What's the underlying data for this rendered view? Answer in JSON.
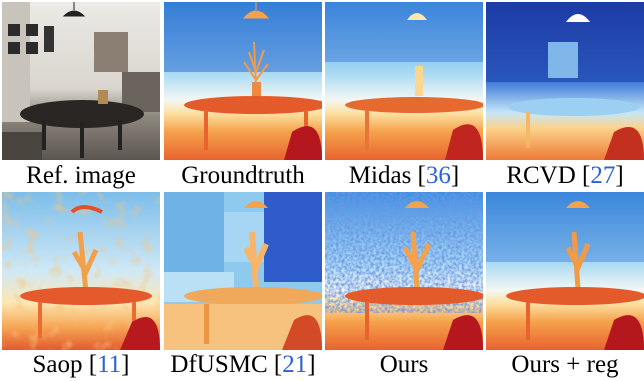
{
  "figure": {
    "panels": [
      {
        "id": "ref",
        "label": "Ref. image",
        "cite": "",
        "style": "photo"
      },
      {
        "id": "gt",
        "label": "Groundtruth",
        "cite": "",
        "style": "depth-smooth"
      },
      {
        "id": "midas",
        "label": "Midas",
        "cite": "36",
        "style": "depth-smooth"
      },
      {
        "id": "rcvd",
        "label": "RCVD",
        "cite": "27",
        "style": "depth-dark"
      },
      {
        "id": "saop",
        "label": "Saop",
        "cite": "11",
        "style": "depth-noisy"
      },
      {
        "id": "dfusmc",
        "label": "DfUSMC",
        "cite": "21",
        "style": "depth-blocky"
      },
      {
        "id": "ours",
        "label": "Ours",
        "cite": "",
        "style": "depth-speckle"
      },
      {
        "id": "oursreg",
        "label": "Ours + reg",
        "cite": "",
        "style": "depth-smooth"
      }
    ]
  },
  "colors": {
    "far": "#2c58c8",
    "mid": "#7fc4ee",
    "near_light": "#fde4a8",
    "near": "#f4a14a",
    "close": "#e0512a",
    "closest": "#b0161e",
    "citation": "#2a63d6"
  }
}
